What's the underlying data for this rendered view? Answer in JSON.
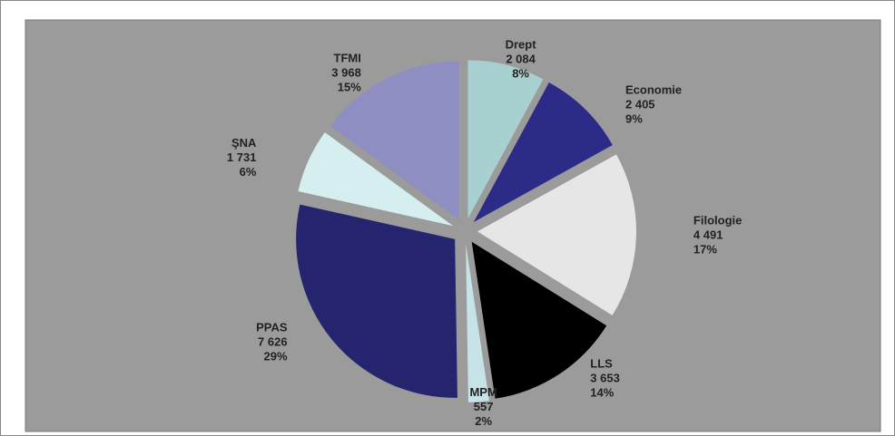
{
  "chart_data": {
    "type": "pie",
    "categories": [
      "Drept",
      "Economie",
      "Filologie",
      "LLS",
      "MPM",
      "PPAS",
      "ŞNA",
      "TFMI"
    ],
    "values": [
      2084,
      2405,
      4491,
      3653,
      557,
      7626,
      1731,
      3968
    ],
    "value_labels": [
      "2 084",
      "2 405",
      "4 491",
      "3 653",
      "557",
      "7 626",
      "1 731",
      "3 968"
    ],
    "percent_labels": [
      "8%",
      "9%",
      "17%",
      "14%",
      "2%",
      "29%",
      "6%",
      "15%"
    ],
    "colors": [
      "#a9d0d0",
      "#2c2b88",
      "#e6e6e6",
      "#000000",
      "#c6e4e7",
      "#25246f",
      "#d5eff1",
      "#8e8ec2"
    ]
  }
}
